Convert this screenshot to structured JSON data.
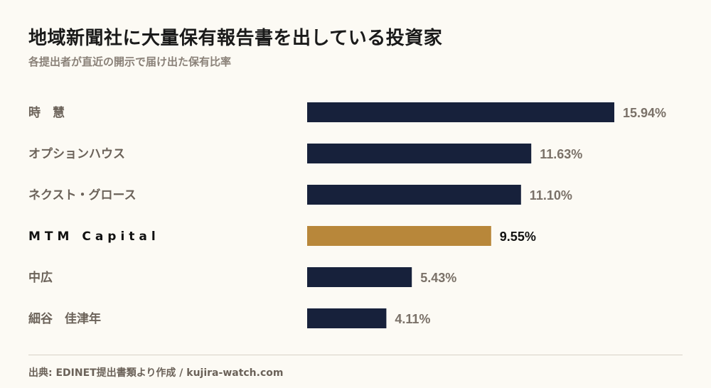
{
  "header": {
    "title": "地域新聞社に大量保有報告書を出している投資家",
    "subtitle": "各提出者が直近の開示で届け出た保有比率"
  },
  "footer": {
    "source": "出典: EDINET提出書類より作成 / kujira-watch.com"
  },
  "colors": {
    "bar_default": "#17213b",
    "bar_highlight": "#b8873a",
    "label_default": "#6b6259",
    "label_highlight": "#111111",
    "value_default": "#7a7168",
    "value_highlight": "#111111"
  },
  "chart_data": {
    "type": "bar",
    "orientation": "horizontal",
    "categories": [
      "時　慧",
      "オプションハウス",
      "ネクスト・グロース",
      "MTM Capital",
      "中広",
      "細谷　佳津年"
    ],
    "values": [
      15.94,
      11.63,
      11.1,
      9.55,
      5.43,
      4.11
    ],
    "value_labels": [
      "15.94%",
      "11.63%",
      "11.10%",
      "9.55%",
      "5.43%",
      "4.11%"
    ],
    "highlight_index": 3,
    "unit": "%",
    "grid": false
  }
}
